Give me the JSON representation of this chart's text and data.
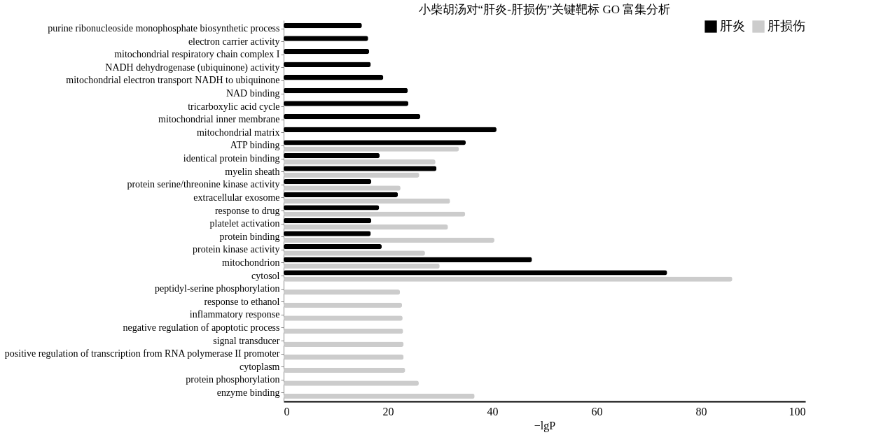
{
  "chart_data": {
    "type": "bar",
    "orientation": "horizontal",
    "title": "小柴胡汤对“肝炎-肝损伤”关键靶标 GO 富集分析",
    "xlabel": "−lgP",
    "categories": [
      "purine ribonucleoside monophosphate biosynthetic process",
      "electron carrier activity",
      "mitochondrial respiratory chain complex I",
      "NADH dehydrogenase (ubiquinone) activity",
      "mitochondrial electron transport NADH to ubiquinone",
      "NAD binding",
      "tricarboxylic acid cycle",
      "mitochondrial inner membrane",
      "mitochondrial matrix",
      "ATP binding",
      "identical protein binding",
      "myelin sheath",
      "protein serine/threonine kinase activity",
      "extracellular exosome",
      "response to drug",
      "platelet activation",
      "protein binding",
      "protein kinase activity",
      "mitochondrion",
      "cytosol",
      "peptidyl-serine phosphorylation",
      "response to ethanol",
      "inflammatory response",
      "negative regulation of apoptotic process",
      "signal transducer",
      "positive regulation of transcription from RNA polymerase II promoter",
      "cytoplasm",
      "protein phosphorylation",
      "enzyme binding"
    ],
    "series": [
      {
        "name": "肝炎",
        "color": "#000000",
        "values": [
          15.0,
          16.2,
          16.4,
          16.7,
          19.1,
          23.8,
          23.9,
          26.2,
          40.8,
          34.9,
          18.4,
          29.3,
          16.8,
          21.9,
          18.3,
          16.8,
          16.7,
          18.8,
          47.6,
          73.5,
          null,
          null,
          null,
          null,
          null,
          null,
          null,
          null,
          null
        ]
      },
      {
        "name": "肝损伤",
        "color": "#cccccc",
        "values": [
          null,
          null,
          null,
          null,
          null,
          null,
          null,
          null,
          null,
          33.6,
          29.1,
          26.0,
          22.4,
          31.9,
          34.8,
          31.5,
          40.4,
          27.1,
          29.9,
          86.0,
          22.3,
          22.7,
          22.8,
          22.9,
          23.0,
          23.0,
          23.3,
          25.9,
          36.6
        ]
      }
    ],
    "xlim": [
      0,
      100
    ],
    "xticks": [
      0,
      20,
      40,
      60,
      80,
      100
    ],
    "grid": false,
    "legend": "top right"
  }
}
